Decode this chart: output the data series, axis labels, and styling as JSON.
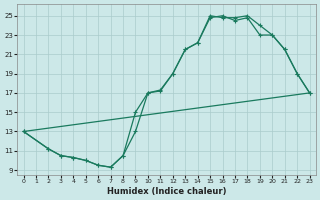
{
  "bg_color": "#cce8e8",
  "grid_color": "#aacccc",
  "line_color": "#1a7a5e",
  "xlabel": "Humidex (Indice chaleur)",
  "xlim": [
    -0.5,
    23.5
  ],
  "ylim": [
    8.5,
    26.2
  ],
  "xticks": [
    0,
    1,
    2,
    3,
    4,
    5,
    6,
    7,
    8,
    9,
    10,
    11,
    12,
    13,
    14,
    15,
    16,
    17,
    18,
    19,
    20,
    21,
    22,
    23
  ],
  "yticks": [
    9,
    11,
    13,
    15,
    17,
    19,
    21,
    23,
    25
  ],
  "line1_straight": {
    "x": [
      0,
      23
    ],
    "y": [
      13.0,
      17.0
    ]
  },
  "line2": {
    "x": [
      0,
      2,
      3,
      4,
      5,
      6,
      7,
      8,
      9,
      10,
      11,
      12,
      13,
      14,
      15,
      16,
      17,
      18,
      19,
      20,
      21,
      22,
      23
    ],
    "y": [
      13.0,
      11.2,
      10.5,
      10.3,
      10.0,
      9.5,
      9.3,
      10.5,
      13.0,
      17.0,
      17.2,
      19.0,
      21.5,
      22.2,
      24.8,
      25.0,
      24.5,
      24.8,
      23.0,
      23.0,
      21.5,
      19.0,
      17.0
    ]
  },
  "line3": {
    "x": [
      0,
      2,
      3,
      4,
      5,
      6,
      7,
      8,
      9,
      10,
      11,
      12,
      13,
      14,
      15,
      16,
      17,
      18,
      19,
      20,
      21,
      22,
      23
    ],
    "y": [
      13.0,
      11.2,
      10.5,
      10.3,
      10.0,
      9.5,
      9.3,
      10.5,
      15.0,
      17.0,
      17.3,
      19.0,
      21.5,
      22.2,
      25.0,
      24.8,
      24.8,
      25.0,
      24.0,
      23.0,
      21.5,
      19.0,
      17.0
    ]
  }
}
